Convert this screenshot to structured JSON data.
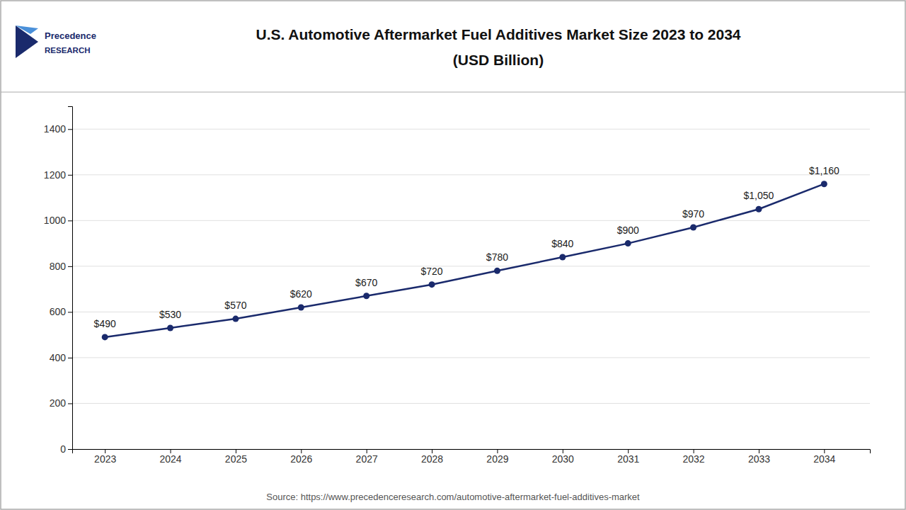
{
  "chart_data": {
    "type": "line",
    "title": "U.S. Automotive Aftermarket Fuel Additives Market Size 2023 to 2034",
    "subtitle": "(USD Billion)",
    "x": [
      2023,
      2024,
      2025,
      2026,
      2027,
      2028,
      2029,
      2030,
      2031,
      2032,
      2033,
      2034
    ],
    "values": [
      490,
      530,
      570,
      620,
      670,
      720,
      780,
      840,
      900,
      970,
      1050,
      1160
    ],
    "value_labels": [
      "$490",
      "$530",
      "$570",
      "$620",
      "$670",
      "$720",
      "$780",
      "$840",
      "$900",
      "$970",
      "$1,050",
      "$1,160"
    ],
    "data_labels": true,
    "color": "#1a2a6c",
    "marker": "circle",
    "xlim": [
      2022.5,
      2034.7
    ],
    "xticks": [
      2023,
      2024,
      2025,
      2026,
      2027,
      2028,
      2029,
      2030,
      2031,
      2032,
      2033,
      2034
    ],
    "ylim": [
      0,
      1500
    ],
    "yticks": [
      0,
      200,
      400,
      600,
      800,
      1000,
      1200,
      1400
    ],
    "grid": "y",
    "annotations": [
      "Precedence",
      "RESEARCH",
      "Source: https://www.precedenceresearch.com/automotive-aftermarket-fuel-additives-market"
    ]
  }
}
